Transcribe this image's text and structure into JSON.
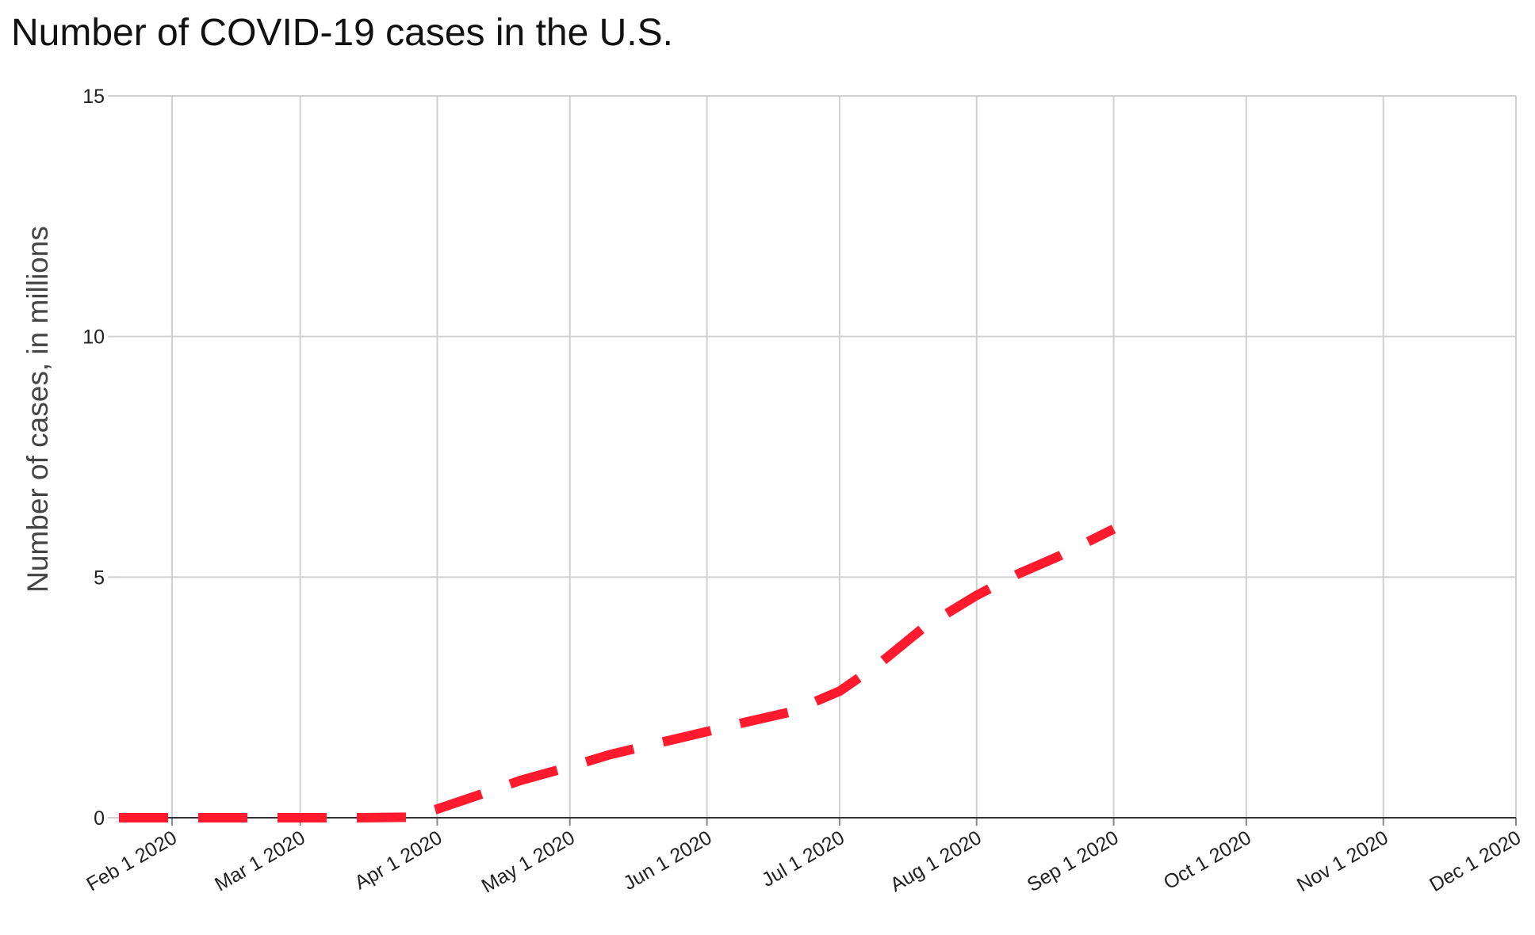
{
  "chart_data": {
    "type": "line",
    "title": "Number of COVID-19 cases in the U.S.",
    "xlabel": "",
    "ylabel": "Number of cases, in millions",
    "ylim": [
      0,
      15
    ],
    "yticks": [
      0,
      5,
      10,
      15
    ],
    "xlim": [
      "2020-01-20",
      "2020-12-01"
    ],
    "xticks": [
      "2020-02-01",
      "2020-03-01",
      "2020-04-01",
      "2020-05-01",
      "2020-06-01",
      "2020-07-01",
      "2020-08-01",
      "2020-09-01",
      "2020-10-01",
      "2020-11-01",
      "2020-12-01"
    ],
    "xtick_labels": [
      "Feb 1 2020",
      "Mar 1 2020",
      "Apr 1 2020",
      "May 1 2020",
      "Jun 1 2020",
      "Jul 1 2020",
      "Aug 1 2020",
      "Sep 1 2020",
      "Oct 1 2020",
      "Nov 1 2020",
      "Dec 1 2020"
    ],
    "grid": true,
    "legend": "none",
    "series": [
      {
        "color": "#ff1a2e",
        "line_style": "dashed",
        "x": [
          "2020-01-20",
          "2020-02-15",
          "2020-03-01",
          "2020-03-15",
          "2020-03-25",
          "2020-04-01",
          "2020-04-10",
          "2020-04-20",
          "2020-05-01",
          "2020-05-10",
          "2020-05-20",
          "2020-06-01",
          "2020-06-10",
          "2020-06-20",
          "2020-07-01",
          "2020-07-10",
          "2020-07-20",
          "2020-08-01",
          "2020-08-10",
          "2020-08-20",
          "2020-09-01"
        ],
        "y": [
          0,
          0,
          0,
          0,
          0.01,
          0.18,
          0.46,
          0.78,
          1.06,
          1.31,
          1.53,
          1.79,
          1.99,
          2.2,
          2.63,
          3.2,
          3.95,
          4.62,
          5.05,
          5.45,
          6.0
        ]
      }
    ]
  }
}
